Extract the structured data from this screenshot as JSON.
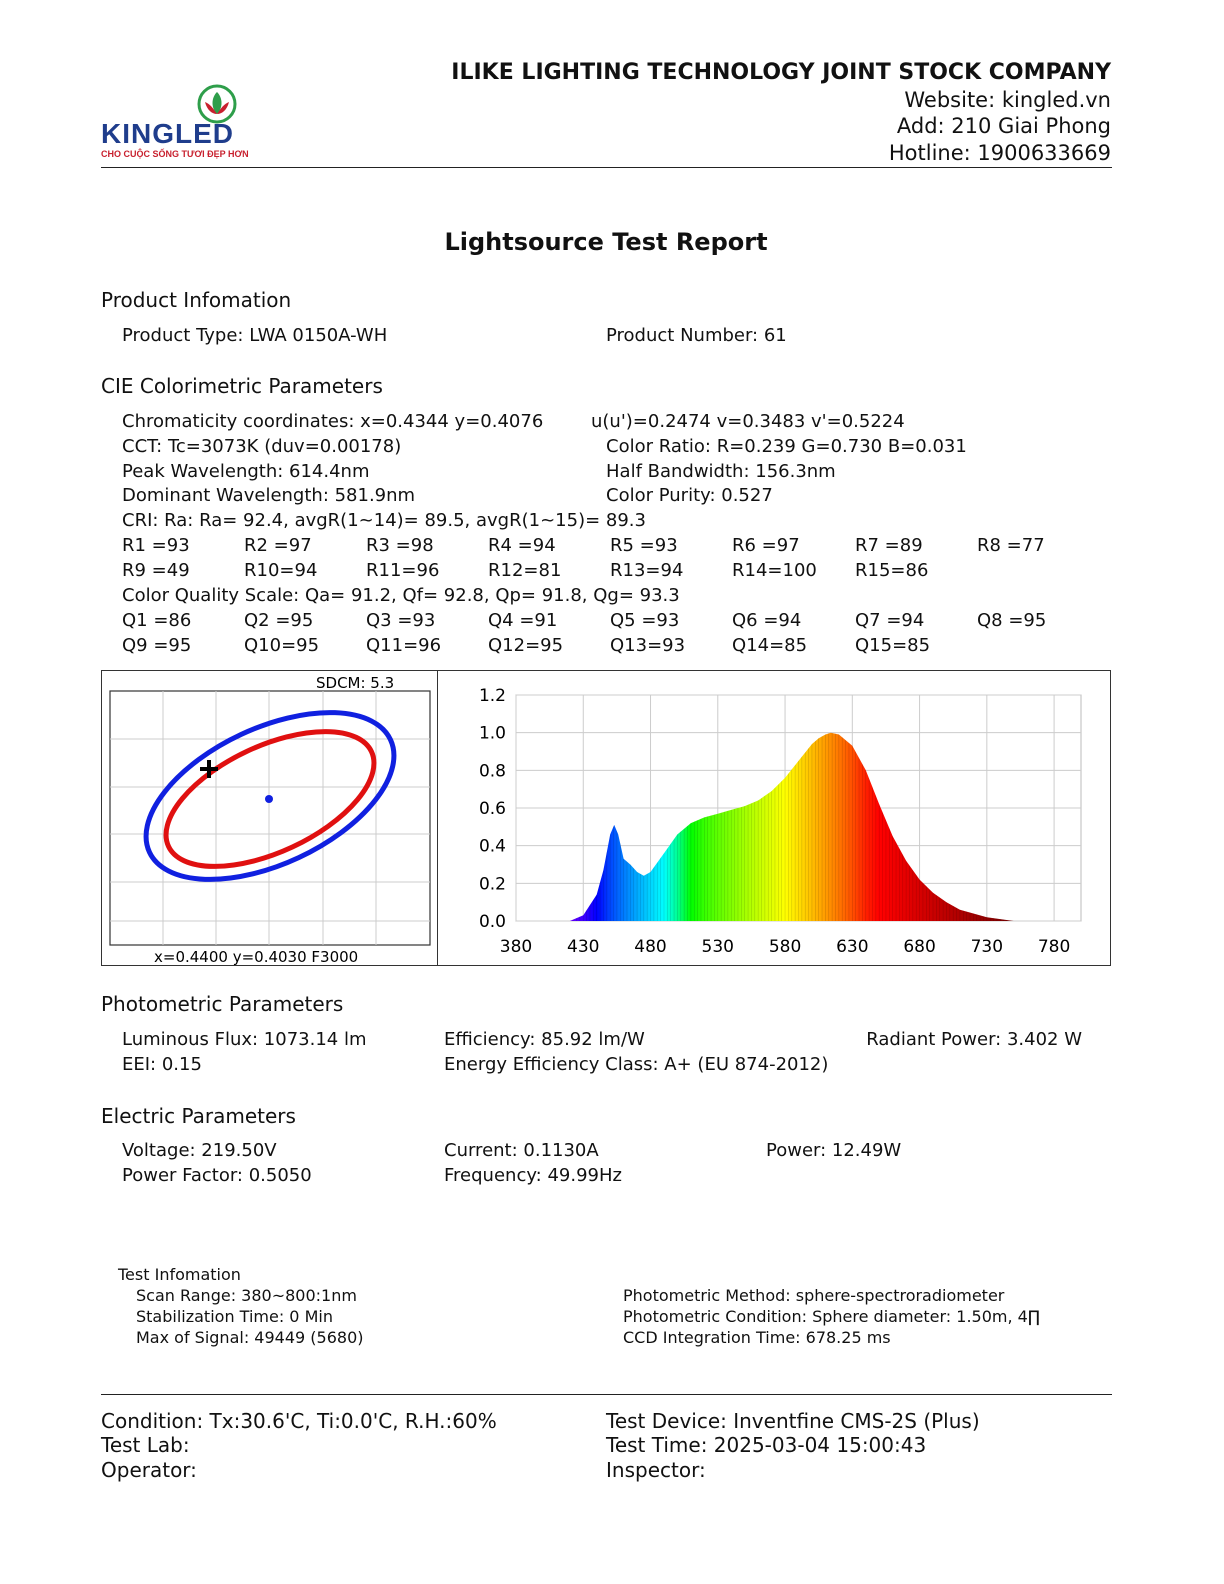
{
  "header": {
    "brand": "KINGLED",
    "slogan": "CHO CUỘC SỐNG TƯƠI ĐẸP HƠN",
    "company": "ILIKE LIGHTING TECHNOLOGY JOINT STOCK COMPANY",
    "website": "Website: kingled.vn",
    "address": "Add: 210 Giai Phong",
    "hotline": "Hotline: 1900633669"
  },
  "title": "Lightsource Test Report",
  "product": {
    "heading": "Product Infomation",
    "type": "Product Type: LWA 0150A-WH",
    "number": "Product Number: 61"
  },
  "cie": {
    "heading": "CIE Colorimetric Parameters",
    "chromaticity": "Chromaticity coordinates: x=0.4344 y=0.4076",
    "uv": "u(u')=0.2474 v=0.3483 v'=0.5224",
    "cct": "CCT: Tc=3073K (duv=0.00178)",
    "color_ratio": "Color Ratio: R=0.239  G=0.730  B=0.031",
    "peak": "Peak Wavelength: 614.4nm",
    "half_bw": "Half Bandwidth: 156.3nm",
    "dominant": "Dominant Wavelength: 581.9nm",
    "purity": "Color Purity: 0.527",
    "cri": "CRI: Ra: Ra= 92.4, avgR(1~14)= 89.5, avgR(1~15)= 89.3",
    "r_row1": [
      "R1 =93",
      "R2 =97",
      "R3 =98",
      "R4 =94",
      "R5 =93",
      "R6 =97",
      "R7 =89",
      "R8 =77"
    ],
    "r_row2": [
      "R9 =49",
      "R10=94",
      "R11=96",
      "R12=81",
      "R13=94",
      "R14=100",
      "R15=86"
    ],
    "cqs": "Color Quality Scale: Qa= 91.2, Qf= 92.8, Qp= 91.8, Qg= 93.3",
    "q_row1": [
      "Q1 =86",
      "Q2 =95",
      "Q3 =93",
      "Q4 =91",
      "Q5 =93",
      "Q6 =94",
      "Q7 =94",
      "Q8 =95"
    ],
    "q_row2": [
      "Q9 =95",
      "Q10=95",
      "Q11=96",
      "Q12=95",
      "Q13=93",
      "Q14=85",
      "Q15=85"
    ]
  },
  "sdcm": {
    "label": "SDCM:   5.3",
    "footer": "x=0.4400 y=0.4030 F3000"
  },
  "chart_data": {
    "type": "area",
    "xlabel": "",
    "ylabel": "",
    "xlim": [
      380,
      800
    ],
    "ylim": [
      0,
      1.2
    ],
    "x_ticks": [
      380,
      430,
      480,
      530,
      580,
      630,
      680,
      730,
      780
    ],
    "y_ticks": [
      "0.0",
      "0.2",
      "0.4",
      "0.6",
      "0.8",
      "1.0",
      "1.2"
    ],
    "grid": true,
    "x": [
      420,
      430,
      440,
      445,
      450,
      453,
      456,
      460,
      465,
      470,
      475,
      480,
      490,
      500,
      510,
      520,
      530,
      540,
      550,
      560,
      570,
      580,
      590,
      600,
      605,
      610,
      614,
      620,
      630,
      640,
      650,
      660,
      670,
      680,
      690,
      700,
      710,
      720,
      730,
      740,
      750
    ],
    "y": [
      0.0,
      0.03,
      0.14,
      0.27,
      0.46,
      0.51,
      0.46,
      0.33,
      0.3,
      0.26,
      0.24,
      0.26,
      0.36,
      0.46,
      0.52,
      0.55,
      0.57,
      0.59,
      0.61,
      0.64,
      0.69,
      0.76,
      0.85,
      0.94,
      0.97,
      0.99,
      1.0,
      0.99,
      0.93,
      0.8,
      0.62,
      0.45,
      0.32,
      0.22,
      0.15,
      0.1,
      0.06,
      0.04,
      0.02,
      0.01,
      0.0
    ]
  },
  "photometric": {
    "heading": "Photometric Parameters",
    "flux": "Luminous Flux: 1073.14 lm",
    "efficiency": "Efficiency: 85.92 lm/W",
    "radiant": "Radiant Power: 3.402 W",
    "eei": "EEI:  0.15",
    "class": "Energy Efficiency Class: A+ (EU 874-2012)"
  },
  "electric": {
    "heading": "Electric Parameters",
    "voltage": "Voltage: 219.50V",
    "current": "Current: 0.1130A",
    "power": "Power: 12.49W",
    "pf": "Power Factor: 0.5050",
    "frequency": "Frequency: 49.99Hz"
  },
  "test_info": {
    "heading": "Test Infomation",
    "scan": "Scan Range: 380~800:1nm",
    "stabilization": "Stabilization Time: 0 Min",
    "max_signal": "Max of Signal: 49449 (5680)",
    "method": "Photometric Method: sphere-spectroradiometer",
    "condition": "Photometric Condition: Sphere diameter: 1.50m, 4∏",
    "ccd": "CCD Integration Time: 678.25 ms"
  },
  "footer": {
    "condition": "Condition: Tx:30.6'C, Ti:0.0'C, R.H.:60%",
    "device": "Test Device: Inventfine CMS-2S (Plus)",
    "lab": "Test Lab:",
    "time": "Test Time: 2025-03-04 15:00:43",
    "operator": "Operator:",
    "inspector": "Inspector:"
  }
}
